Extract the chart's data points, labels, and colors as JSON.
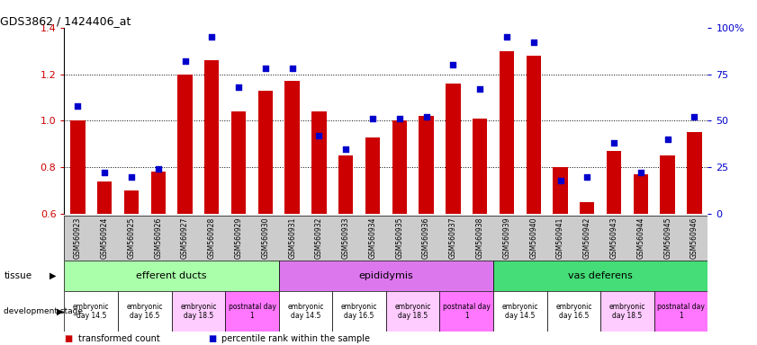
{
  "title": "GDS3862 / 1424406_at",
  "samples": [
    "GSM560923",
    "GSM560924",
    "GSM560925",
    "GSM560926",
    "GSM560927",
    "GSM560928",
    "GSM560929",
    "GSM560930",
    "GSM560931",
    "GSM560932",
    "GSM560933",
    "GSM560934",
    "GSM560935",
    "GSM560936",
    "GSM560937",
    "GSM560938",
    "GSM560939",
    "GSM560940",
    "GSM560941",
    "GSM560942",
    "GSM560943",
    "GSM560944",
    "GSM560945",
    "GSM560946"
  ],
  "transformed_count": [
    1.0,
    0.74,
    0.7,
    0.78,
    1.2,
    1.26,
    1.04,
    1.13,
    1.17,
    1.04,
    0.85,
    0.93,
    1.0,
    1.02,
    1.16,
    1.01,
    1.3,
    1.28,
    0.8,
    0.65,
    0.87,
    0.77,
    0.85,
    0.95
  ],
  "percentile_rank": [
    58,
    22,
    20,
    24,
    82,
    95,
    68,
    78,
    78,
    42,
    35,
    51,
    51,
    52,
    80,
    67,
    95,
    92,
    18,
    20,
    38,
    22,
    40,
    52
  ],
  "ylim_left": [
    0.6,
    1.4
  ],
  "ylim_right": [
    0,
    100
  ],
  "yticks_left": [
    0.6,
    0.8,
    1.0,
    1.2,
    1.4
  ],
  "yticks_right": [
    0,
    25,
    50,
    75,
    100
  ],
  "ytick_labels_right": [
    "0",
    "25",
    "50",
    "75",
    "100%"
  ],
  "bar_color": "#cc0000",
  "dot_color": "#0000cc",
  "tissues": [
    {
      "label": "efferent ducts",
      "start": 0,
      "end": 8,
      "color": "#aaffaa"
    },
    {
      "label": "epididymis",
      "start": 8,
      "end": 16,
      "color": "#dd77ee"
    },
    {
      "label": "vas deferens",
      "start": 16,
      "end": 24,
      "color": "#44dd77"
    }
  ],
  "dev_stages": [
    {
      "label": "embryonic\nday 14.5",
      "start": 0,
      "end": 2,
      "color": "#ffffff"
    },
    {
      "label": "embryonic\nday 16.5",
      "start": 2,
      "end": 4,
      "color": "#ffffff"
    },
    {
      "label": "embryonic\nday 18.5",
      "start": 4,
      "end": 6,
      "color": "#ffccff"
    },
    {
      "label": "postnatal day\n1",
      "start": 6,
      "end": 8,
      "color": "#ff77ff"
    },
    {
      "label": "embryonic\nday 14.5",
      "start": 8,
      "end": 10,
      "color": "#ffffff"
    },
    {
      "label": "embryonic\nday 16.5",
      "start": 10,
      "end": 12,
      "color": "#ffffff"
    },
    {
      "label": "embryonic\nday 18.5",
      "start": 12,
      "end": 14,
      "color": "#ffccff"
    },
    {
      "label": "postnatal day\n1",
      "start": 14,
      "end": 16,
      "color": "#ff77ff"
    },
    {
      "label": "embryonic\nday 14.5",
      "start": 16,
      "end": 18,
      "color": "#ffffff"
    },
    {
      "label": "embryonic\nday 16.5",
      "start": 18,
      "end": 20,
      "color": "#ffffff"
    },
    {
      "label": "embryonic\nday 18.5",
      "start": 20,
      "end": 22,
      "color": "#ffccff"
    },
    {
      "label": "postnatal day\n1",
      "start": 22,
      "end": 24,
      "color": "#ff77ff"
    }
  ],
  "legend_labels": [
    "transformed count",
    "percentile rank within the sample"
  ],
  "legend_colors": [
    "#cc0000",
    "#0000cc"
  ],
  "left_label_color": "#cc0000",
  "right_label_color": "#0000cc",
  "xticklabel_bg": "#dddddd"
}
